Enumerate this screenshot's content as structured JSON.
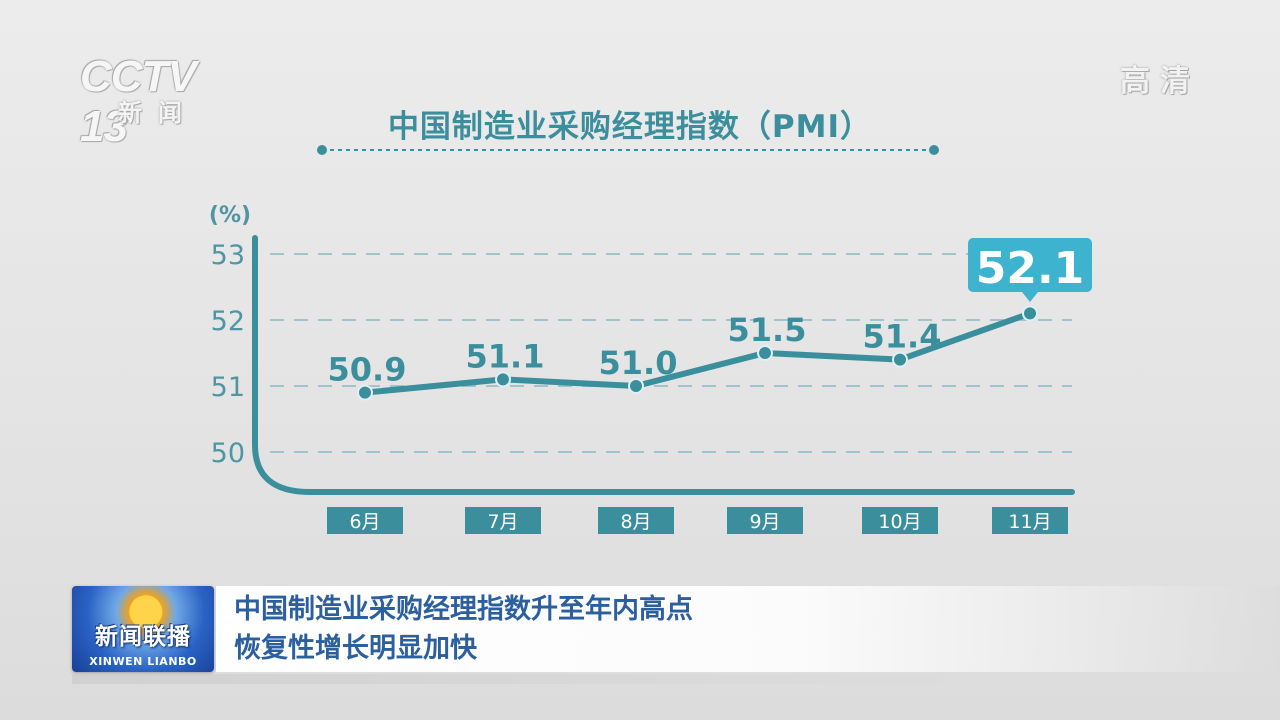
{
  "channel": {
    "logo": "CCTV 13",
    "logo_sub": "新闻",
    "quality_label": "高清"
  },
  "chart_data": {
    "type": "line",
    "title": "中国制造业采购经理指数（PMI）",
    "ylabel": "(%)",
    "xlabel": "",
    "categories": [
      "6月",
      "7月",
      "8月",
      "9月",
      "10月",
      "11月"
    ],
    "values": [
      50.9,
      51.1,
      51.0,
      51.5,
      51.4,
      52.1
    ],
    "value_labels": [
      "50.9",
      "51.1",
      "51.0",
      "51.5",
      "51.4",
      "52.1"
    ],
    "highlight_index": 5,
    "yticks": [
      "50",
      "51",
      "52",
      "53"
    ],
    "ylim": [
      49.4,
      53
    ],
    "grid": true,
    "legend": "none",
    "colors": {
      "line": "#3b8f9c",
      "accent": "#3eb3cf",
      "tick_label": "#4f95a3",
      "grid": "#9fc4cb"
    }
  },
  "banner": {
    "logo_cn": "新闻联播",
    "logo_en": "XINWEN LIANBO",
    "line1": "中国制造业采购经理指数升至年内高点",
    "line2": "恢复性增长明显加快"
  }
}
